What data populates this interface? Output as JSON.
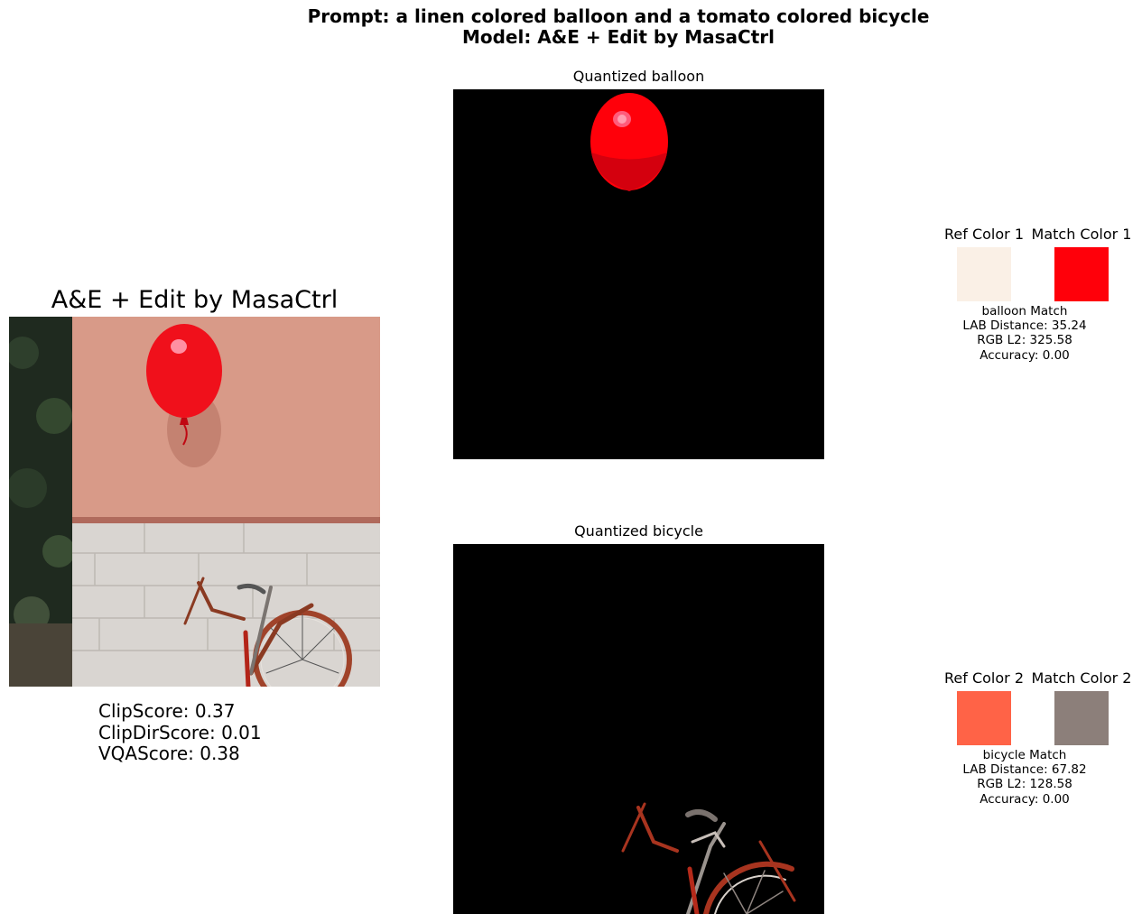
{
  "header": {
    "prompt_line": "Prompt: a linen colored balloon and a tomato colored bicycle",
    "model_line": "Model: A&E + Edit by MasaCtrl"
  },
  "main": {
    "title": "A&E + Edit by MasaCtrl",
    "scores": [
      "ClipScore: 0.37",
      "ClipDirScore: 0.01",
      "VQAScore: 0.38"
    ]
  },
  "panels": [
    {
      "title": "Quantized balloon"
    },
    {
      "title": "Quantized bicycle"
    }
  ],
  "colors": [
    {
      "ref_title": "Ref Color 1",
      "match_title": "Match Color 1",
      "ref_hex": "#faf0e6",
      "match_hex": "#ff000a",
      "metrics": [
        "balloon Match",
        "LAB Distance: 35.24",
        "RGB L2: 325.58",
        "Accuracy: 0.00"
      ]
    },
    {
      "ref_title": "Ref Color 2",
      "match_title": "Match Color 2",
      "ref_hex": "#ff6347",
      "match_hex": "#8c7f7a",
      "metrics": [
        "bicycle Match",
        "LAB Distance: 67.82",
        "RGB L2: 128.58",
        "Accuracy: 0.00"
      ]
    }
  ]
}
